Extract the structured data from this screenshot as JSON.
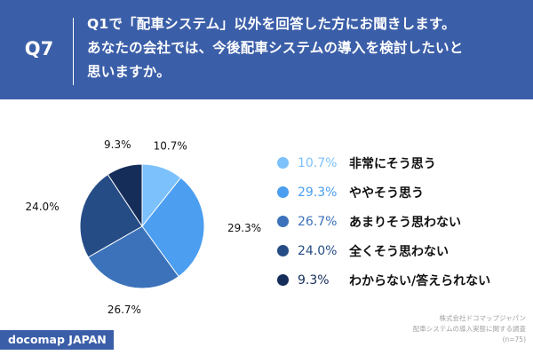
{
  "header": {
    "question_number": "Q7",
    "question_lines": [
      "Q1で「配車システム」以外を回答した方にお聞きします。",
      "あなたの会社では、今後配車システムの導入を検討したいと",
      "思いますか。"
    ]
  },
  "chart_data": {
    "type": "pie",
    "series": [
      {
        "label": "非常にそう思う",
        "pct_label": "10.7%",
        "value": 10.7,
        "color": "#7cc1fb"
      },
      {
        "label": "ややそう思う",
        "pct_label": "29.3%",
        "value": 29.3,
        "color": "#4b9ef0"
      },
      {
        "label": "あまりそう思わない",
        "pct_label": "26.7%",
        "value": 26.7,
        "color": "#3b72ba"
      },
      {
        "label": "全くそう思わない",
        "pct_label": "24.0%",
        "value": 24.0,
        "color": "#264c86"
      },
      {
        "label": "わからない/答えられない",
        "pct_label": "9.3%",
        "value": 9.3,
        "color": "#152d59"
      }
    ],
    "start": "12 o'clock",
    "direction": "clockwise",
    "legend_position": "right"
  },
  "footer": {
    "brand": "docomap JAPAN",
    "source_lines": [
      "株式会社ドコマップジャパン",
      "配車システムの導入実態に関する調査",
      "(n=75)"
    ]
  },
  "colors": {
    "header_bg": "#3b5ea8",
    "header_text": "#ffffff"
  }
}
